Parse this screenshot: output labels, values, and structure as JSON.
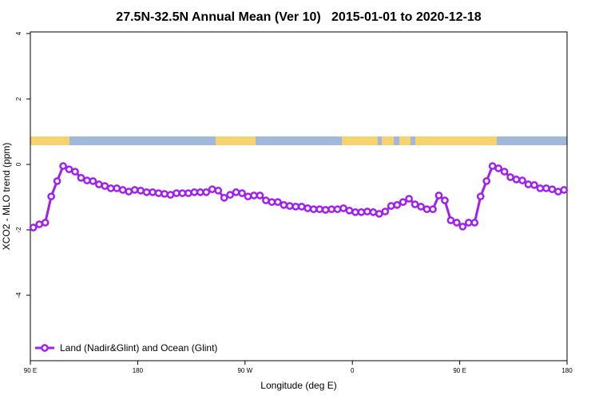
{
  "chart_data": {
    "type": "line",
    "title": "27.5N-32.5N Annual Mean (Ver 10)   2015-01-01 to 2020-12-18",
    "x_label": "Longitude (deg E)",
    "y_label": "XCO2 - MLO trend (ppm)",
    "x": [
      92.5,
      97.5,
      102.5,
      107.5,
      112.5,
      117.5,
      122.5,
      127.5,
      132.5,
      137.5,
      142.5,
      147.5,
      152.5,
      157.5,
      162.5,
      167.5,
      172.5,
      177.5,
      182.5,
      187.5,
      192.5,
      197.5,
      202.5,
      207.5,
      212.5,
      217.5,
      222.5,
      227.5,
      232.5,
      237.5,
      242.5,
      247.5,
      252.5,
      257.5,
      262.5,
      267.5,
      272.5,
      277.5,
      282.5,
      287.5,
      292.5,
      297.5,
      302.5,
      307.5,
      312.5,
      317.5,
      322.5,
      327.5,
      332.5,
      337.5,
      342.5,
      347.5,
      352.5,
      357.5,
      362.5,
      367.5,
      372.5,
      377.5,
      382.5,
      387.5,
      392.5,
      397.5,
      402.5,
      407.5,
      412.5,
      417.5,
      422.5,
      427.5,
      432.5,
      437.5,
      442.5,
      447.5,
      452.5,
      457.5,
      462.5,
      467.5,
      472.5,
      477.5,
      482.5,
      487.5,
      492.5,
      497.5,
      502.5,
      507.5,
      512.5,
      517.5,
      522.5,
      527.5,
      532.5,
      537.5
    ],
    "series": [
      {
        "name": "Land (Nadir&Glint) and Ocean (Glint)",
        "color": "#a020f0",
        "values": [
          -1.93,
          -1.83,
          -1.78,
          -0.98,
          -0.51,
          -0.05,
          -0.15,
          -0.22,
          -0.41,
          -0.49,
          -0.51,
          -0.61,
          -0.66,
          -0.73,
          -0.73,
          -0.78,
          -0.83,
          -0.78,
          -0.8,
          -0.85,
          -0.85,
          -0.88,
          -0.9,
          -0.93,
          -0.88,
          -0.88,
          -0.88,
          -0.85,
          -0.85,
          -0.85,
          -0.76,
          -0.8,
          -1.02,
          -0.93,
          -0.85,
          -0.88,
          -0.98,
          -0.95,
          -0.95,
          -1.1,
          -1.15,
          -1.15,
          -1.24,
          -1.27,
          -1.29,
          -1.29,
          -1.34,
          -1.37,
          -1.37,
          -1.39,
          -1.37,
          -1.37,
          -1.34,
          -1.41,
          -1.46,
          -1.46,
          -1.44,
          -1.46,
          -1.51,
          -1.44,
          -1.27,
          -1.24,
          -1.15,
          -1.05,
          -1.22,
          -1.29,
          -1.37,
          -1.37,
          -0.95,
          -1.1,
          -1.71,
          -1.78,
          -1.9,
          -1.78,
          -1.78,
          -0.98,
          -0.51,
          -0.05,
          -0.12,
          -0.22,
          -0.39,
          -0.46,
          -0.49,
          -0.61,
          -0.63,
          -0.73,
          -0.73,
          -0.76,
          -0.83,
          -0.78
        ]
      }
    ],
    "xlim": [
      90,
      540
    ],
    "xticks": [
      {
        "value": 90,
        "label": "90 E"
      },
      180,
      {
        "value": 270,
        "label": "90 W"
      },
      {
        "value": 360,
        "label": "0"
      },
      {
        "value": 450,
        "label": "90 E"
      },
      {
        "value": 540,
        "label": "180"
      }
    ],
    "ylim": [
      -6,
      4.05
    ],
    "yticks": [
      -4,
      -2,
      0,
      2,
      4
    ],
    "legend": "bottom-left"
  }
}
